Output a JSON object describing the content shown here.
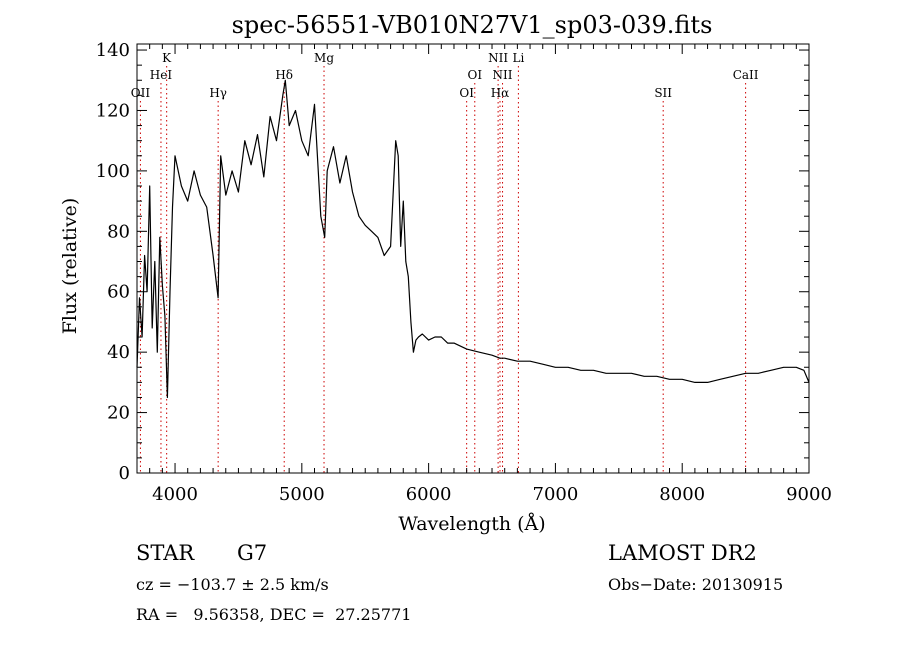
{
  "chart_data": {
    "type": "line",
    "title": "spec-56551-VB010N27V1_sp03-039.fits",
    "xlabel": "Wavelength (Å)",
    "ylabel": "Flux (relative)",
    "xlim": [
      3700,
      9000
    ],
    "ylim": [
      0,
      142
    ],
    "x_ticks": [
      4000,
      5000,
      6000,
      7000,
      8000,
      9000
    ],
    "y_ticks": [
      0,
      20,
      40,
      60,
      80,
      100,
      120,
      140
    ],
    "grid": false,
    "series": [
      {
        "name": "flux",
        "x": [
          3700,
          3720,
          3740,
          3760,
          3780,
          3800,
          3820,
          3840,
          3860,
          3880,
          3900,
          3920,
          3940,
          3960,
          3980,
          4000,
          4050,
          4100,
          4150,
          4200,
          4250,
          4300,
          4340,
          4360,
          4400,
          4450,
          4500,
          4550,
          4600,
          4650,
          4700,
          4750,
          4800,
          4850,
          4870,
          4900,
          4950,
          5000,
          5050,
          5100,
          5150,
          5180,
          5200,
          5250,
          5300,
          5350,
          5400,
          5450,
          5500,
          5550,
          5600,
          5650,
          5700,
          5740,
          5760,
          5780,
          5800,
          5820,
          5840,
          5860,
          5880,
          5900,
          5920,
          5950,
          6000,
          6050,
          6100,
          6150,
          6200,
          6300,
          6400,
          6500,
          6563,
          6600,
          6700,
          6800,
          6900,
          7000,
          7100,
          7200,
          7300,
          7400,
          7500,
          7600,
          7700,
          7800,
          7900,
          8000,
          8100,
          8200,
          8300,
          8400,
          8500,
          8600,
          8700,
          8800,
          8900,
          8960,
          9000
        ],
        "y": [
          35,
          58,
          45,
          72,
          60,
          95,
          48,
          70,
          40,
          78,
          62,
          52,
          25,
          60,
          88,
          105,
          95,
          90,
          100,
          92,
          88,
          72,
          58,
          105,
          92,
          100,
          93,
          110,
          102,
          112,
          98,
          118,
          110,
          125,
          130,
          115,
          120,
          110,
          105,
          122,
          85,
          78,
          100,
          108,
          96,
          105,
          93,
          85,
          82,
          80,
          78,
          72,
          75,
          110,
          105,
          75,
          90,
          70,
          65,
          50,
          40,
          44,
          45,
          46,
          44,
          45,
          45,
          43,
          43,
          41,
          40,
          39,
          38,
          38,
          37,
          37,
          36,
          35,
          35,
          34,
          34,
          33,
          33,
          33,
          32,
          32,
          31,
          31,
          30,
          30,
          31,
          32,
          33,
          33,
          34,
          35,
          35,
          34,
          30
        ]
      }
    ],
    "annotations": [
      {
        "label": "OII",
        "x": 3727,
        "row": 3
      },
      {
        "label": "K",
        "x": 3934,
        "row": 1
      },
      {
        "label": "HeI",
        "x": 3889,
        "row": 2
      },
      {
        "label": "Hγ",
        "x": 4340,
        "row": 3
      },
      {
        "label": "Hδ",
        "x": 4861,
        "row": 2
      },
      {
        "label": "Mg",
        "x": 5175,
        "row": 1
      },
      {
        "label": "OI",
        "x": 6364,
        "row": 2
      },
      {
        "label": "OI",
        "x": 6300,
        "row": 3
      },
      {
        "label": "NII",
        "x": 6548,
        "row": 1
      },
      {
        "label": "NII",
        "x": 6583,
        "row": 2
      },
      {
        "label": "Hα",
        "x": 6563,
        "row": 3
      },
      {
        "label": "Li",
        "x": 6708,
        "row": 1
      },
      {
        "label": "SII",
        "x": 7850,
        "row": 3
      },
      {
        "label": "CaII",
        "x": 8500,
        "row": 2
      }
    ]
  },
  "info": {
    "object_type": "STAR",
    "subclass": "G7",
    "cz": "cz = −103.7 ± 2.5 km/s",
    "radec": "RA =   9.56358, DEC =  27.25771",
    "survey": "LAMOST DR2",
    "obs_date": "Obs−Date: 20130915"
  }
}
